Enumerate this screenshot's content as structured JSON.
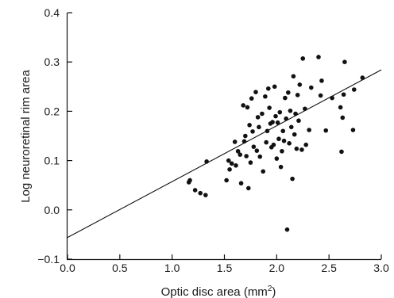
{
  "chart_data": {
    "type": "scatter",
    "xlabel": "Optic disc area (mm",
    "xlabel_superscript": "2",
    "xlabel_suffix": ")",
    "ylabel": "Log neuroretinal rim area",
    "xlim": [
      0,
      3
    ],
    "ylim": [
      -0.1,
      0.4
    ],
    "x_ticks": [
      "0.0",
      "0.5",
      "1.0",
      "1.5",
      "2.0",
      "2.5",
      "3.0"
    ],
    "y_ticks": [
      "−0.1",
      "0.0",
      "0.1",
      "0.2",
      "0.3",
      "0.4"
    ],
    "grid": false,
    "legend": "none",
    "point_color": "#111111",
    "line_color": "#111111",
    "regression_line": {
      "x": [
        0,
        3
      ],
      "y": [
        -0.056,
        0.284
      ]
    },
    "points": [
      [
        1.16,
        0.056
      ],
      [
        1.17,
        0.06
      ],
      [
        1.22,
        0.04
      ],
      [
        1.27,
        0.034
      ],
      [
        1.32,
        0.03
      ],
      [
        1.33,
        0.098
      ],
      [
        1.52,
        0.06
      ],
      [
        1.54,
        0.1
      ],
      [
        1.55,
        0.082
      ],
      [
        1.57,
        0.094
      ],
      [
        1.6,
        0.138
      ],
      [
        1.61,
        0.09
      ],
      [
        1.63,
        0.119
      ],
      [
        1.65,
        0.112
      ],
      [
        1.66,
        0.054
      ],
      [
        1.68,
        0.212
      ],
      [
        1.69,
        0.139
      ],
      [
        1.7,
        0.15
      ],
      [
        1.71,
        0.109
      ],
      [
        1.72,
        0.208
      ],
      [
        1.73,
        0.044
      ],
      [
        1.74,
        0.172
      ],
      [
        1.75,
        0.096
      ],
      [
        1.76,
        0.226
      ],
      [
        1.77,
        0.159
      ],
      [
        1.78,
        0.128
      ],
      [
        1.8,
        0.239
      ],
      [
        1.81,
        0.12
      ],
      [
        1.82,
        0.188
      ],
      [
        1.83,
        0.168
      ],
      [
        1.84,
        0.108
      ],
      [
        1.86,
        0.195
      ],
      [
        1.87,
        0.078
      ],
      [
        1.89,
        0.23
      ],
      [
        1.9,
        0.137
      ],
      [
        1.91,
        0.16
      ],
      [
        1.92,
        0.246
      ],
      [
        1.93,
        0.207
      ],
      [
        1.94,
        0.175
      ],
      [
        1.95,
        0.127
      ],
      [
        1.96,
        0.178
      ],
      [
        1.97,
        0.132
      ],
      [
        1.98,
        0.25
      ],
      [
        1.99,
        0.19
      ],
      [
        2.0,
        0.104
      ],
      [
        2.01,
        0.177
      ],
      [
        2.02,
        0.144
      ],
      [
        2.03,
        0.198
      ],
      [
        2.04,
        0.087
      ],
      [
        2.05,
        0.119
      ],
      [
        2.06,
        0.16
      ],
      [
        2.07,
        0.14
      ],
      [
        2.08,
        0.227
      ],
      [
        2.09,
        0.185
      ],
      [
        2.1,
        -0.04
      ],
      [
        2.11,
        0.238
      ],
      [
        2.12,
        0.135
      ],
      [
        2.13,
        0.201
      ],
      [
        2.14,
        0.168
      ],
      [
        2.15,
        0.063
      ],
      [
        2.16,
        0.271
      ],
      [
        2.17,
        0.153
      ],
      [
        2.18,
        0.195
      ],
      [
        2.19,
        0.124
      ],
      [
        2.2,
        0.233
      ],
      [
        2.21,
        0.181
      ],
      [
        2.22,
        0.254
      ],
      [
        2.24,
        0.122
      ],
      [
        2.25,
        0.307
      ],
      [
        2.27,
        0.205
      ],
      [
        2.28,
        0.132
      ],
      [
        2.31,
        0.162
      ],
      [
        2.33,
        0.248
      ],
      [
        2.4,
        0.31
      ],
      [
        2.42,
        0.232
      ],
      [
        2.43,
        0.262
      ],
      [
        2.47,
        0.161
      ],
      [
        2.53,
        0.227
      ],
      [
        2.61,
        0.208
      ],
      [
        2.62,
        0.118
      ],
      [
        2.63,
        0.187
      ],
      [
        2.64,
        0.234
      ],
      [
        2.65,
        0.3
      ],
      [
        2.73,
        0.162
      ],
      [
        2.82,
        0.268
      ],
      [
        2.74,
        0.244
      ]
    ]
  }
}
